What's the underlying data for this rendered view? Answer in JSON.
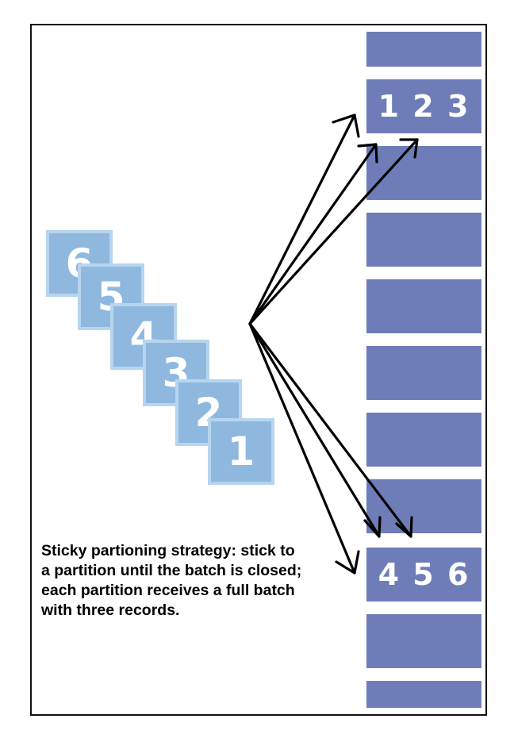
{
  "partitions": [
    {
      "label": ""
    },
    {
      "label": "1 2 3"
    },
    {
      "label": ""
    },
    {
      "label": ""
    },
    {
      "label": ""
    },
    {
      "label": ""
    },
    {
      "label": ""
    },
    {
      "label": ""
    },
    {
      "label": "4 5 6"
    },
    {
      "label": ""
    },
    {
      "label": ""
    }
  ],
  "records": [
    "6",
    "5",
    "4",
    "3",
    "2",
    "1"
  ],
  "caption": "Sticky partioning strategy: stick to a partition until the batch is closed; each partition receives a full batch with three records.",
  "colors": {
    "partition": "#6e7db8",
    "record_fill": "#8fb8df",
    "record_border": "#b6d5ee",
    "arrow": "#000000"
  }
}
